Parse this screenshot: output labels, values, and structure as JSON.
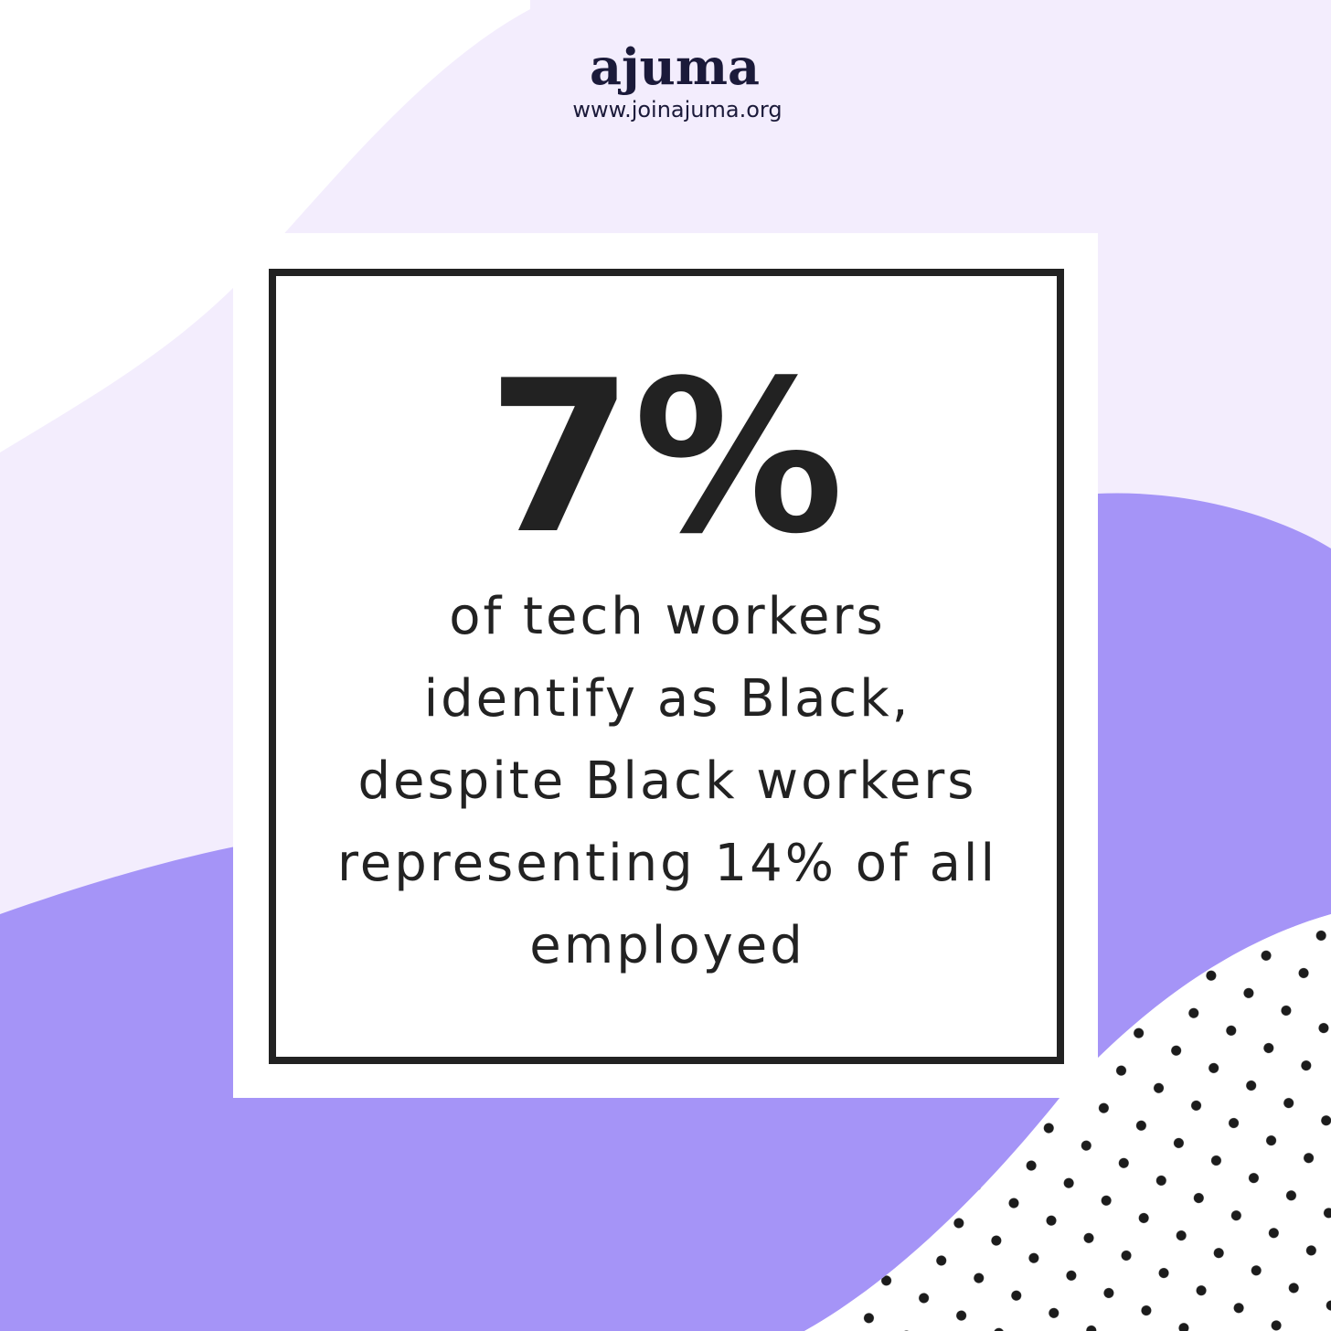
{
  "brand": {
    "name": "ajuma",
    "url": "www.joinajuma.org"
  },
  "stat": {
    "value": "7%",
    "lines": [
      "of tech workers",
      "identify as Black,",
      "despite Black workers",
      "representing 14% of all",
      "employed"
    ]
  }
}
